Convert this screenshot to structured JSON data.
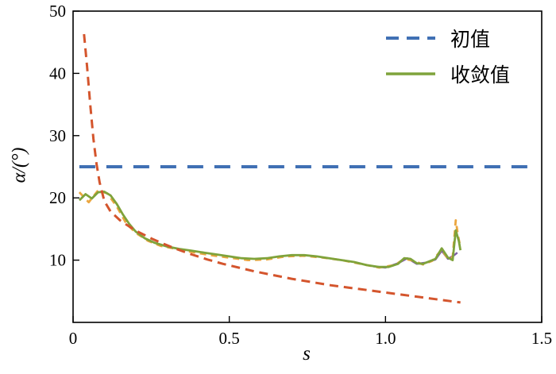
{
  "figure": {
    "background": "#ffffff"
  },
  "legend": {
    "items": [
      {
        "label": "初值",
        "color": "#4070B4",
        "style": "dashed"
      },
      {
        "label": "收敛值",
        "color": "#7FA33B",
        "style": "solid"
      }
    ]
  },
  "chart_data": {
    "type": "line",
    "title": "",
    "xlabel": "s",
    "ylabel": "α/(°)",
    "xlim": [
      0,
      1.5
    ],
    "ylim": [
      0,
      50
    ],
    "xticks": [
      0,
      0.5,
      1.0,
      1.5
    ],
    "xtick_labels": [
      "0",
      "0.5",
      "1.0",
      "1.5"
    ],
    "yticks": [
      10,
      20,
      30,
      40,
      50
    ],
    "ytick_labels": [
      "10",
      "20",
      "30",
      "40",
      "50"
    ],
    "grid": false,
    "legend_position": "upper right",
    "series": [
      {
        "name": "purple-overlay-unlabeled",
        "color": "#7D5FA8",
        "dash": "solid",
        "width": 2.5,
        "in_legend": false,
        "x": [
          0.96,
          1.0,
          1.04,
          1.07,
          1.1,
          1.13,
          1.16,
          1.18,
          1.2,
          1.22,
          1.23
        ],
        "y": [
          9.0,
          8.8,
          9.5,
          10.3,
          9.4,
          9.6,
          10.1,
          11.5,
          10.2,
          10.8,
          11.2
        ]
      },
      {
        "name": "orange-dashed-overlay-unlabeled",
        "color": "#EBA63F",
        "dash": "dashed-short",
        "width": 2.8,
        "in_legend": false,
        "x": [
          0.02,
          0.05,
          0.08,
          0.11,
          0.14,
          0.17,
          0.2,
          0.24,
          0.28,
          0.33,
          0.38,
          0.44,
          0.5,
          0.56,
          0.62,
          0.68,
          0.74,
          0.8,
          0.86,
          0.92,
          0.98,
          1.03,
          1.06,
          1.09,
          1.12,
          1.15,
          1.18,
          1.2,
          1.215,
          1.225,
          1.232,
          1.24
        ],
        "y": [
          20.9,
          19.3,
          21.2,
          20.7,
          18.6,
          15.9,
          14.4,
          13.1,
          12.3,
          11.8,
          11.3,
          10.8,
          10.4,
          10.0,
          10.1,
          10.6,
          10.7,
          10.4,
          10.0,
          9.4,
          8.8,
          9.2,
          10.2,
          9.9,
          9.3,
          9.9,
          11.7,
          10.2,
          10.5,
          16.4,
          14.0,
          12.0
        ]
      },
      {
        "name": "收敛值",
        "color": "#7FA33B",
        "dash": "solid",
        "width": 2.8,
        "in_legend": true,
        "x": [
          0.02,
          0.04,
          0.06,
          0.08,
          0.1,
          0.12,
          0.14,
          0.16,
          0.18,
          0.2,
          0.23,
          0.26,
          0.3,
          0.34,
          0.38,
          0.42,
          0.46,
          0.5,
          0.54,
          0.58,
          0.62,
          0.66,
          0.7,
          0.74,
          0.78,
          0.82,
          0.86,
          0.9,
          0.94,
          0.98,
          1.01,
          1.04,
          1.06,
          1.08,
          1.1,
          1.12,
          1.14,
          1.16,
          1.18,
          1.2,
          1.215,
          1.225,
          1.235,
          1.24
        ],
        "y": [
          19.6,
          20.6,
          19.9,
          20.9,
          21.0,
          20.4,
          19.0,
          17.3,
          15.8,
          14.6,
          13.5,
          12.8,
          12.2,
          11.8,
          11.5,
          11.2,
          10.9,
          10.6,
          10.3,
          10.2,
          10.3,
          10.6,
          10.8,
          10.8,
          10.6,
          10.3,
          10.0,
          9.7,
          9.2,
          8.9,
          8.9,
          9.4,
          10.3,
          10.2,
          9.5,
          9.4,
          9.8,
          10.2,
          11.9,
          10.4,
          10.0,
          14.8,
          13.0,
          11.6
        ]
      },
      {
        "name": "red-dashed-unlabeled",
        "color": "#D4552D",
        "dash": "dashed",
        "width": 3,
        "in_legend": false,
        "x": [
          0.035,
          0.045,
          0.055,
          0.065,
          0.075,
          0.085,
          0.1,
          0.12,
          0.15,
          0.18,
          0.21,
          0.25,
          0.29,
          0.33,
          0.38,
          0.43,
          0.48,
          0.53,
          0.58,
          0.64,
          0.7,
          0.76,
          0.82,
          0.88,
          0.94,
          1.0,
          1.06,
          1.12,
          1.18,
          1.24
        ],
        "y": [
          46.3,
          41.0,
          35.0,
          29.5,
          25.5,
          22.5,
          19.5,
          17.8,
          16.4,
          15.4,
          14.5,
          13.5,
          12.6,
          11.8,
          10.9,
          10.1,
          9.4,
          8.8,
          8.2,
          7.6,
          7.0,
          6.5,
          6.0,
          5.6,
          5.2,
          4.8,
          4.4,
          4.0,
          3.6,
          3.2
        ]
      },
      {
        "name": "初值",
        "color": "#4070B4",
        "dash": "dashed-long",
        "width": 4,
        "in_legend": true,
        "x": [
          0.02,
          1.47
        ],
        "y": [
          25,
          25
        ]
      }
    ]
  }
}
